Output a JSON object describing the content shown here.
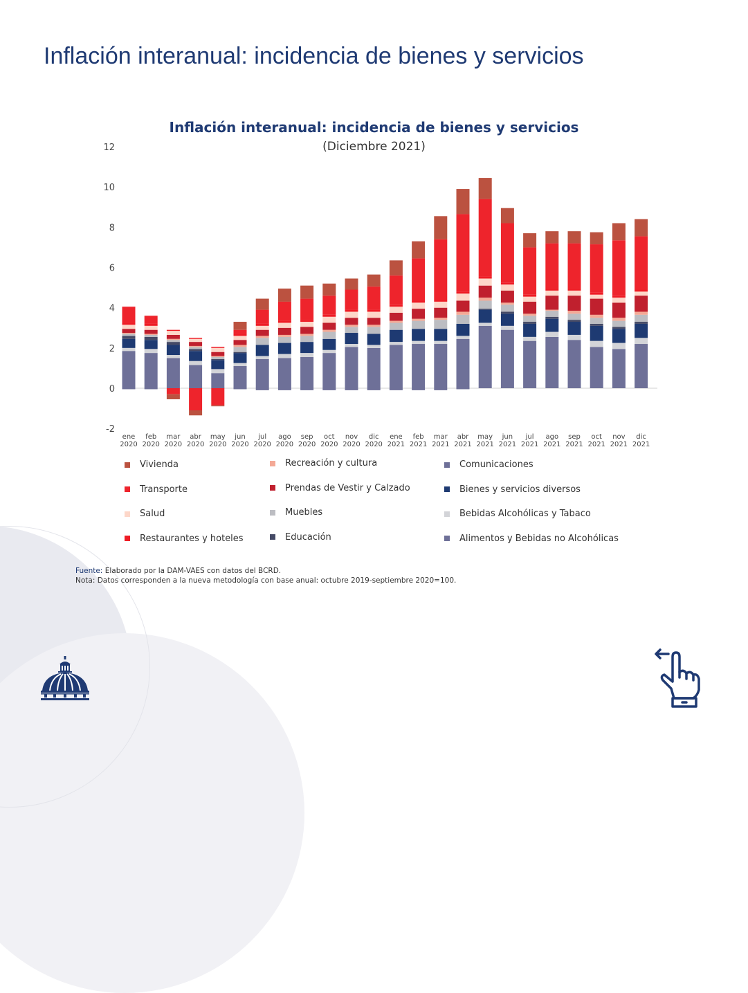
{
  "page": {
    "title": "Inflación interanual: incidencia de bienes y servicios"
  },
  "source": {
    "label": "Fuente:",
    "text": "Elaborado por la DAM-VAES con datos del BCRD.",
    "note": "Nota: Datos corresponden a la nueva metodología con base anual: octubre 2019-septiembre 2020=100."
  },
  "icons": {
    "logo": "dome-logo-icon",
    "swipe": "swipe-left-hand-icon"
  },
  "chart_data": {
    "type": "bar",
    "stacked": true,
    "title": "Inflación interanual: incidencia de bienes y servicios",
    "subtitle": "(Diciembre 2021)",
    "xlabel": "",
    "ylabel": "",
    "ylim": [
      -2,
      12
    ],
    "yticks": [
      -2,
      0,
      2,
      4,
      6,
      8,
      10,
      12
    ],
    "grid": false,
    "legend_position": "bottom",
    "categories": [
      [
        "ene",
        "2020"
      ],
      [
        "feb",
        "2020"
      ],
      [
        "mar",
        "2020"
      ],
      [
        "abr",
        "2020"
      ],
      [
        "may",
        "2020"
      ],
      [
        "jun",
        "2020"
      ],
      [
        "jul",
        "2020"
      ],
      [
        "ago",
        "2020"
      ],
      [
        "sep",
        "2020"
      ],
      [
        "oct",
        "2020"
      ],
      [
        "nov",
        "2020"
      ],
      [
        "dic",
        "2020"
      ],
      [
        "ene",
        "2021"
      ],
      [
        "feb",
        "2021"
      ],
      [
        "mar",
        "2021"
      ],
      [
        "abr",
        "2021"
      ],
      [
        "may",
        "2021"
      ],
      [
        "jun",
        "2021"
      ],
      [
        "jul",
        "2021"
      ],
      [
        "ago",
        "2021"
      ],
      [
        "sep",
        "2021"
      ],
      [
        "oct",
        "2021"
      ],
      [
        "nov",
        "2021"
      ],
      [
        "dic",
        "2021"
      ]
    ],
    "series": [
      {
        "name": "Alimentos y Bebidas no Alcohólicas",
        "color": "#6e7098",
        "values": [
          1.85,
          1.75,
          1.5,
          1.15,
          0.75,
          1.1,
          1.45,
          1.5,
          1.55,
          1.75,
          2.05,
          2.0,
          2.15,
          2.2,
          2.2,
          2.45,
          3.1,
          2.9,
          2.35,
          2.55,
          2.4,
          2.05,
          1.95,
          2.2
        ]
      },
      {
        "name": "Bebidas Alcohólicas y Tabaco",
        "color": "#d3d4d8",
        "values": [
          0.15,
          0.2,
          0.15,
          0.2,
          0.2,
          0.15,
          0.15,
          0.2,
          0.2,
          0.15,
          0.15,
          0.15,
          0.15,
          0.15,
          0.15,
          0.15,
          0.15,
          0.2,
          0.2,
          0.25,
          0.25,
          0.3,
          0.3,
          0.3
        ]
      },
      {
        "name": "Bienes y servicios diversos",
        "color": "#1e3a72",
        "values": [
          0.45,
          0.45,
          0.5,
          0.5,
          0.45,
          0.5,
          0.55,
          0.55,
          0.55,
          0.55,
          0.55,
          0.55,
          0.6,
          0.6,
          0.6,
          0.6,
          0.65,
          0.6,
          0.65,
          0.65,
          0.65,
          0.75,
          0.7,
          0.7
        ]
      },
      {
        "name": "Educación",
        "color": "#454a66",
        "values": [
          0.15,
          0.15,
          0.15,
          0.1,
          0.05,
          0.05,
          0.0,
          0.0,
          0.0,
          0.0,
          0.0,
          0.0,
          0.0,
          0.0,
          0.0,
          0.0,
          0.05,
          0.1,
          0.1,
          0.1,
          0.1,
          0.1,
          0.1,
          0.1
        ]
      },
      {
        "name": "Muebles",
        "color": "#bcbdc2",
        "values": [
          0.1,
          0.1,
          0.1,
          0.1,
          0.1,
          0.25,
          0.35,
          0.3,
          0.3,
          0.35,
          0.3,
          0.35,
          0.35,
          0.4,
          0.45,
          0.45,
          0.4,
          0.35,
          0.3,
          0.3,
          0.3,
          0.3,
          0.3,
          0.35
        ]
      },
      {
        "name": "Recreación y cultura",
        "color": "#f4a996",
        "values": [
          0.05,
          0.05,
          0.05,
          0.05,
          0.05,
          0.1,
          0.1,
          0.1,
          0.1,
          0.1,
          0.1,
          0.1,
          0.1,
          0.1,
          0.1,
          0.15,
          0.15,
          0.1,
          0.1,
          0.05,
          0.15,
          0.15,
          0.15,
          0.15
        ]
      },
      {
        "name": "Prendas de Vestir y Calzado",
        "color": "#c0202e",
        "values": [
          0.2,
          0.2,
          0.2,
          0.2,
          0.2,
          0.25,
          0.3,
          0.35,
          0.35,
          0.35,
          0.35,
          0.35,
          0.4,
          0.5,
          0.5,
          0.55,
          0.6,
          0.6,
          0.6,
          0.7,
          0.75,
          0.8,
          0.75,
          0.8
        ]
      },
      {
        "name": "Salud",
        "color": "#fdd7c9",
        "values": [
          0.2,
          0.2,
          0.2,
          0.15,
          0.2,
          0.2,
          0.2,
          0.25,
          0.25,
          0.3,
          0.3,
          0.3,
          0.3,
          0.3,
          0.3,
          0.35,
          0.35,
          0.3,
          0.25,
          0.25,
          0.25,
          0.2,
          0.25,
          0.2
        ]
      },
      {
        "name": "Restaurantes y hoteles",
        "color": "#ee1c25",
        "values": [
          0.1,
          0.1,
          0.05,
          0.05,
          0.05,
          0.1,
          0.1,
          0.1,
          0.1,
          0.1,
          0.1,
          0.1,
          0.1,
          0.1,
          0.1,
          0.1,
          0.1,
          0.1,
          0.1,
          0.1,
          0.1,
          0.1,
          0.1,
          0.1
        ]
      },
      {
        "name": "Transporte",
        "color": "#ee242c",
        "values": [
          0.8,
          0.4,
          -0.3,
          -1.1,
          -0.85,
          0.2,
          0.7,
          0.95,
          1.05,
          0.95,
          1.0,
          1.15,
          1.45,
          2.1,
          3.0,
          3.85,
          3.85,
          2.95,
          2.35,
          2.25,
          2.25,
          2.4,
          2.75,
          2.65
        ]
      },
      {
        "name": "Vivienda",
        "color": "#bb5240",
        "values": [
          0.0,
          0.0,
          -0.25,
          -0.25,
          -0.05,
          0.4,
          0.55,
          0.65,
          0.65,
          0.6,
          0.55,
          0.6,
          0.75,
          0.85,
          1.15,
          1.25,
          1.05,
          0.75,
          0.7,
          0.6,
          0.6,
          0.6,
          0.85,
          0.85
        ]
      },
      {
        "name": "Comunicaciones",
        "color": "#6e7098",
        "values": [
          -0.05,
          -0.05,
          0.0,
          0.0,
          0.0,
          -0.05,
          -0.1,
          -0.1,
          -0.1,
          -0.1,
          -0.1,
          -0.1,
          -0.1,
          -0.1,
          -0.1,
          -0.05,
          0.0,
          0.0,
          0.0,
          0.0,
          0.0,
          0.0,
          0.0,
          0.0
        ]
      }
    ],
    "totals_approx": [
      3.9,
      3.45,
      2.7,
      2.3,
      1.9,
      3.1,
      4.45,
      4.95,
      5.15,
      5.15,
      5.45,
      5.7,
      6.35,
      7.25,
      8.5,
      9.9,
      10.35,
      9.1,
      7.8,
      7.75,
      7.8,
      7.65,
      8.25,
      8.5
    ],
    "legend": [
      {
        "name": "Vivienda",
        "color": "#bb5240"
      },
      {
        "name": "Recreación y cultura",
        "color": "#f4a996"
      },
      {
        "name": "Comunicaciones",
        "color": "#6e7098"
      },
      {
        "name": "Transporte",
        "color": "#ee242c"
      },
      {
        "name": "Prendas de Vestir y Calzado",
        "color": "#c0202e"
      },
      {
        "name": "Bienes y servicios diversos",
        "color": "#1e3a72"
      },
      {
        "name": "Salud",
        "color": "#fdd7c9"
      },
      {
        "name": "Muebles",
        "color": "#bcbdc2"
      },
      {
        "name": "Bebidas Alcohólicas y Tabaco",
        "color": "#d3d4d8"
      },
      {
        "name": "Restaurantes y hoteles",
        "color": "#ee1c25"
      },
      {
        "name": "Educación",
        "color": "#454a66"
      },
      {
        "name": "Alimentos y Bebidas no Alcohólicas",
        "color": "#6e7098"
      }
    ]
  }
}
